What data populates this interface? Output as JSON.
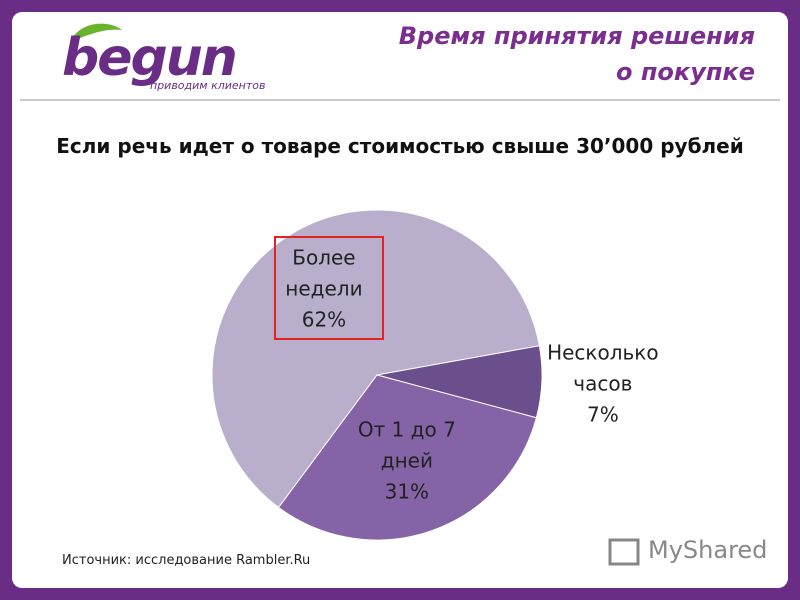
{
  "header": {
    "title": "Время принятия решения о покупке",
    "logo": "begun",
    "tagline": "приводим клиентов"
  },
  "chart_data": {
    "type": "pie",
    "title": "Если речь идет о товаре стоимостью свыше 30’000 рублей",
    "categories": [
      "Более недели",
      "Несколько часов",
      "От 1 до 7 дней"
    ],
    "values": [
      62,
      7,
      31
    ],
    "value_labels": [
      "62%",
      "7%",
      "31%"
    ],
    "colors": [
      "#b9afcc",
      "#6a4f8c",
      "#8464a6"
    ]
  },
  "footer": {
    "source": "Источник: исследование Rambler.Ru",
    "watermark": "MyShared"
  }
}
